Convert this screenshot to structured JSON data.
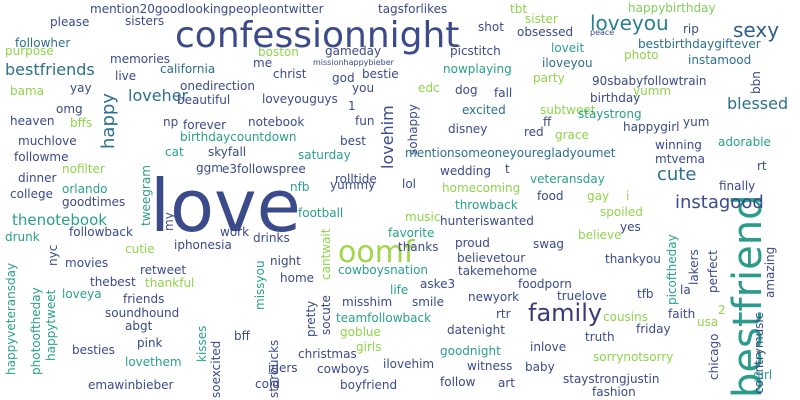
{
  "words": [
    {
      "text": "love",
      "color": "#3b4a8a"
    },
    {
      "text": "confessionnight",
      "color": "#3b4a8a"
    },
    {
      "text": "bestfriend",
      "color": "#2a9b8c"
    },
    {
      "text": "oomf",
      "color": "#a2d64a"
    },
    {
      "text": "family",
      "color": "#3a3a7a"
    },
    {
      "text": "loveyou",
      "color": "#2b7f8e"
    },
    {
      "text": "sexy",
      "color": "#2d5f8a"
    },
    {
      "text": "instagood",
      "color": "#3b4a8a"
    },
    {
      "text": "cute",
      "color": "#2d6f8e"
    },
    {
      "text": "bestfriends",
      "color": "#2d6f8e"
    },
    {
      "text": "happy",
      "color": "#2d6f8e"
    },
    {
      "text": "loveher",
      "color": "#2d6f8e"
    },
    {
      "text": "lovehim",
      "color": "#3b4a8a"
    },
    {
      "text": "blessed",
      "color": "#2d6f8e"
    },
    {
      "text": "thenotebook",
      "color": "#2aa08a"
    },
    {
      "text": "mention20goodlookingpeopleontwitter",
      "color": "#3b4a8a"
    },
    {
      "text": "tagsforlikes",
      "color": "#3b4a8a"
    },
    {
      "text": "happybirthday",
      "color": "#7fcf5a"
    },
    {
      "text": "sisters",
      "color": "#3b4a8a"
    },
    {
      "text": "please",
      "color": "#3b4a8a"
    },
    {
      "text": "shot",
      "color": "#3b4a8a"
    },
    {
      "text": "tbt",
      "color": "#8fd44a"
    },
    {
      "text": "sister",
      "color": "#8fd44a"
    },
    {
      "text": "obsessed",
      "color": "#3b4a8a"
    },
    {
      "text": "peace",
      "color": "#3b4a8a"
    },
    {
      "text": "rip",
      "color": "#3b4a8a"
    },
    {
      "text": "photo",
      "color": "#8fd44a"
    },
    {
      "text": "bestbirthdaygiftever",
      "color": "#2d6f8e"
    },
    {
      "text": "instamood",
      "color": "#2d6f8e"
    },
    {
      "text": "followher",
      "color": "#2d6f8e"
    },
    {
      "text": "purpose",
      "color": "#8fd44a"
    },
    {
      "text": "memories",
      "color": "#3b4a8a"
    },
    {
      "text": "boston",
      "color": "#8fd44a"
    },
    {
      "text": "gameday",
      "color": "#3b4a8a"
    },
    {
      "text": "picstitch",
      "color": "#3b4a8a"
    },
    {
      "text": "loveit",
      "color": "#2aa08a"
    },
    {
      "text": "iloveyou",
      "color": "#2d6f8e"
    },
    {
      "text": "missionhappybieber",
      "color": "#3b4a8a"
    },
    {
      "text": "me",
      "color": "#3b4a8a"
    },
    {
      "text": "california",
      "color": "#2d6f8e"
    },
    {
      "text": "christ",
      "color": "#3b4a8a"
    },
    {
      "text": "god",
      "color": "#3b4a8a"
    },
    {
      "text": "bestie",
      "color": "#3b4a8a"
    },
    {
      "text": "nowplaying",
      "color": "#2aa08a"
    },
    {
      "text": "party",
      "color": "#8fd44a"
    },
    {
      "text": "90sbabyfollowtrain",
      "color": "#3b4a8a"
    },
    {
      "text": "live",
      "color": "#3b4a8a"
    },
    {
      "text": "bama",
      "color": "#8fd44a"
    },
    {
      "text": "yay",
      "color": "#3b4a8a"
    },
    {
      "text": "onedirection",
      "color": "#3b4a8a"
    },
    {
      "text": "you",
      "color": "#3b4a8a"
    },
    {
      "text": "edc",
      "color": "#8fd44a"
    },
    {
      "text": "yumm",
      "color": "#8fd44a"
    },
    {
      "text": "bbn",
      "color": "#3b4a8a"
    },
    {
      "text": "beautiful",
      "color": "#3b4a8a"
    },
    {
      "text": "loveyouguys",
      "color": "#3b4a8a"
    },
    {
      "text": "dog",
      "color": "#3b4a8a"
    },
    {
      "text": "fall",
      "color": "#3b4a8a"
    },
    {
      "text": "birthday",
      "color": "#3b4a8a"
    },
    {
      "text": "omg",
      "color": "#3b4a8a"
    },
    {
      "text": "excited",
      "color": "#2d6f8e"
    },
    {
      "text": "subtweet",
      "color": "#8fd44a"
    },
    {
      "text": "heaven",
      "color": "#3b4a8a"
    },
    {
      "text": "bffs",
      "color": "#8fd44a"
    },
    {
      "text": "np",
      "color": "#3b4a8a"
    },
    {
      "text": "forever",
      "color": "#3b4a8a"
    },
    {
      "text": "notebook",
      "color": "#3b4a8a"
    },
    {
      "text": "fun",
      "color": "#3b4a8a"
    },
    {
      "text": "sohappy",
      "color": "#3b4a8a"
    },
    {
      "text": "staystrong",
      "color": "#2aa08a"
    },
    {
      "text": "yum",
      "color": "#3b4a8a"
    },
    {
      "text": "muchlove",
      "color": "#3b4a8a"
    },
    {
      "text": "birthdaycountdown",
      "color": "#2aa08a"
    },
    {
      "text": "best",
      "color": "#3b4a8a"
    },
    {
      "text": "disney",
      "color": "#3b4a8a"
    },
    {
      "text": "red",
      "color": "#3b4a8a"
    },
    {
      "text": "grace",
      "color": "#8fd44a"
    },
    {
      "text": "happygirl",
      "color": "#3b4a8a"
    },
    {
      "text": "followme",
      "color": "#3b4a8a"
    },
    {
      "text": "cat",
      "color": "#2aa08a"
    },
    {
      "text": "skyfall",
      "color": "#3b4a8a"
    },
    {
      "text": "saturday",
      "color": "#2aa08a"
    },
    {
      "text": "mentionsomeoneyouregladyoumet",
      "color": "#2d6f8e"
    },
    {
      "text": "winning",
      "color": "#3b4a8a"
    },
    {
      "text": "adorable",
      "color": "#2aa08a"
    },
    {
      "text": "nofilter",
      "color": "#8fd44a"
    },
    {
      "text": "mtvema",
      "color": "#3b4a8a"
    },
    {
      "text": "rt",
      "color": "#3b4a8a"
    },
    {
      "text": "dinner",
      "color": "#3b4a8a"
    },
    {
      "text": "ggm",
      "color": "#3b4a8a"
    },
    {
      "text": "e3followspree",
      "color": "#3b4a8a"
    },
    {
      "text": "wedding",
      "color": "#3b4a8a"
    },
    {
      "text": "t",
      "color": "#3b4a8a"
    },
    {
      "text": "veteransday",
      "color": "#2aa08a"
    },
    {
      "text": "college",
      "color": "#3b4a8a"
    },
    {
      "text": "orlando",
      "color": "#2aa08a"
    },
    {
      "text": "tweegram",
      "color": "#2aa08a"
    },
    {
      "text": "nfb",
      "color": "#2aa08a"
    },
    {
      "text": "rolltide",
      "color": "#3b4a8a"
    },
    {
      "text": "yummy",
      "color": "#3b4a8a"
    },
    {
      "text": "lol",
      "color": "#3b4a8a"
    },
    {
      "text": "homecoming",
      "color": "#8fd44a"
    },
    {
      "text": "finally",
      "color": "#3b4a8a"
    },
    {
      "text": "goodtimes",
      "color": "#3b4a8a"
    },
    {
      "text": "food",
      "color": "#3b4a8a"
    },
    {
      "text": "gay",
      "color": "#8fd44a"
    },
    {
      "text": "i",
      "color": "#8fd44a"
    },
    {
      "text": "drunk",
      "color": "#2aa08a"
    },
    {
      "text": "followback",
      "color": "#3b4a8a"
    },
    {
      "text": "football",
      "color": "#2aa08a"
    },
    {
      "text": "music",
      "color": "#8fd44a"
    },
    {
      "text": "throwback",
      "color": "#2aa08a"
    },
    {
      "text": "hunteriswanted",
      "color": "#3b4a8a"
    },
    {
      "text": "spoiled",
      "color": "#8fd44a"
    },
    {
      "text": "my",
      "color": "#3b4a8a"
    },
    {
      "text": "work",
      "color": "#3b4a8a"
    },
    {
      "text": "cantwait",
      "color": "#8fd44a"
    },
    {
      "text": "favorite",
      "color": "#2aa08a"
    },
    {
      "text": "yes",
      "color": "#3b4a8a"
    },
    {
      "text": "picoftheday",
      "color": "#2aa08a"
    },
    {
      "text": "cutie",
      "color": "#8fd44a"
    },
    {
      "text": "iphonesia",
      "color": "#3b4a8a"
    },
    {
      "text": "drinks",
      "color": "#3b4a8a"
    },
    {
      "text": "thanks",
      "color": "#3b4a8a"
    },
    {
      "text": "believe",
      "color": "#8fd44a"
    },
    {
      "text": "nyc",
      "color": "#3b4a8a"
    },
    {
      "text": "movies",
      "color": "#3b4a8a"
    },
    {
      "text": "night",
      "color": "#3b4a8a"
    },
    {
      "text": "proud",
      "color": "#3b4a8a"
    },
    {
      "text": "swag",
      "color": "#3b4a8a"
    },
    {
      "text": "lakers",
      "color": "#3b4a8a"
    },
    {
      "text": "perfect",
      "color": "#3b4a8a"
    },
    {
      "text": "amazing",
      "color": "#3b4a8a"
    },
    {
      "text": "retweet",
      "color": "#3b4a8a"
    },
    {
      "text": "believetour",
      "color": "#3b4a8a"
    },
    {
      "text": "thankyou",
      "color": "#3b4a8a"
    },
    {
      "text": "cowboysnation",
      "color": "#2aa08a"
    },
    {
      "text": "takemehome",
      "color": "#3b4a8a"
    },
    {
      "text": "thebest",
      "color": "#3b4a8a"
    },
    {
      "text": "thankful",
      "color": "#8fd44a"
    },
    {
      "text": "home",
      "color": "#3b4a8a"
    },
    {
      "text": "aske3",
      "color": "#3b4a8a"
    },
    {
      "text": "foodporn",
      "color": "#3b4a8a"
    },
    {
      "text": "life",
      "color": "#2aa08a"
    },
    {
      "text": "loveya",
      "color": "#2aa08a"
    },
    {
      "text": "friends",
      "color": "#3b4a8a"
    },
    {
      "text": "newyork",
      "color": "#3b4a8a"
    },
    {
      "text": "truelove",
      "color": "#3b4a8a"
    },
    {
      "text": "tfb",
      "color": "#3b4a8a"
    },
    {
      "text": "la",
      "color": "#3b4a8a"
    },
    {
      "text": "happyveteransday",
      "color": "#2aa08a"
    },
    {
      "text": "happytweet",
      "color": "#2aa08a"
    },
    {
      "text": "photooftheday",
      "color": "#2aa08a"
    },
    {
      "text": "soundhound",
      "color": "#3b4a8a"
    },
    {
      "text": "missyou",
      "color": "#2aa08a"
    },
    {
      "text": "pretty",
      "color": "#3b4a8a"
    },
    {
      "text": "socute",
      "color": "#3b4a8a"
    },
    {
      "text": "misshim",
      "color": "#3b4a8a"
    },
    {
      "text": "smile",
      "color": "#3b4a8a"
    },
    {
      "text": "2",
      "color": "#8fd44a"
    },
    {
      "text": "abgt",
      "color": "#3b4a8a"
    },
    {
      "text": "teamfollowback",
      "color": "#2aa08a"
    },
    {
      "text": "cousins",
      "color": "#8fd44a"
    },
    {
      "text": "faith",
      "color": "#3b4a8a"
    },
    {
      "text": "usa",
      "color": "#8fd44a"
    },
    {
      "text": "goblue",
      "color": "#8fd44a"
    },
    {
      "text": "rtr",
      "color": "#3b4a8a"
    },
    {
      "text": "datenight",
      "color": "#3b4a8a"
    },
    {
      "text": "friday",
      "color": "#3b4a8a"
    },
    {
      "text": "besties",
      "color": "#3b4a8a"
    },
    {
      "text": "pink",
      "color": "#3b4a8a"
    },
    {
      "text": "bff",
      "color": "#3b4a8a"
    },
    {
      "text": "kisses",
      "color": "#2aa08a"
    },
    {
      "text": "truth",
      "color": "#3b4a8a"
    },
    {
      "text": "chicago",
      "color": "#3b4a8a"
    },
    {
      "text": "countrymusic",
      "color": "#3b4a8a"
    },
    {
      "text": "lovethem",
      "color": "#2aa08a"
    },
    {
      "text": "starbucks",
      "color": "#3b4a8a"
    },
    {
      "text": "girls",
      "color": "#8fd44a"
    },
    {
      "text": "goodnight",
      "color": "#2aa08a"
    },
    {
      "text": "inlove",
      "color": "#3b4a8a"
    },
    {
      "text": "christmas",
      "color": "#3b4a8a"
    },
    {
      "text": "sorrynotsorry",
      "color": "#8fd44a"
    },
    {
      "text": "soexcited",
      "color": "#3b4a8a"
    },
    {
      "text": "ilovehim",
      "color": "#3b4a8a"
    },
    {
      "text": "witness",
      "color": "#3b4a8a"
    },
    {
      "text": "baby",
      "color": "#3b4a8a"
    },
    {
      "text": "emawinbieber",
      "color": "#3b4a8a"
    },
    {
      "text": "igers",
      "color": "#3b4a8a"
    },
    {
      "text": "cowboys",
      "color": "#3b4a8a"
    },
    {
      "text": "staystrongjustin",
      "color": "#3b4a8a"
    },
    {
      "text": "girl",
      "color": "#2aa08a"
    },
    {
      "text": "cold",
      "color": "#3b4a8a"
    },
    {
      "text": "boyfriend",
      "color": "#3b4a8a"
    },
    {
      "text": "follow",
      "color": "#3b4a8a"
    },
    {
      "text": "art",
      "color": "#3b4a8a"
    },
    {
      "text": "fashion",
      "color": "#3b4a8a"
    },
    {
      "text": "1",
      "color": "#3b4a8a"
    },
    {
      "text": "ff",
      "color": "#3b4a8a"
    }
  ]
}
